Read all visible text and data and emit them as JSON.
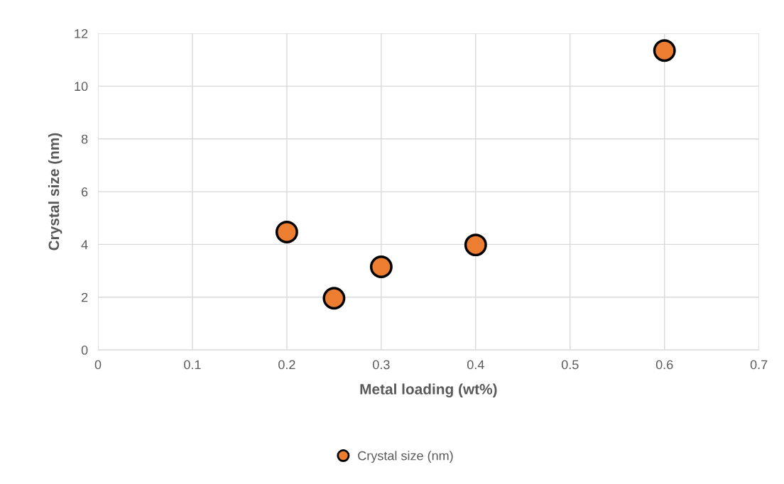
{
  "chart_data": {
    "type": "scatter",
    "xlabel": "Metal loading (wt%)",
    "ylabel": "Crystal size (nm)",
    "x": [
      0.2,
      0.25,
      0.3,
      0.4,
      0.6
    ],
    "series": [
      {
        "name": "Crystal size (nm)",
        "color": "#ed7d31",
        "values": [
          4.47,
          1.96,
          3.15,
          3.98,
          11.35
        ]
      }
    ],
    "xlim": [
      0,
      0.7
    ],
    "xticks": [
      0,
      0.1,
      0.2,
      0.3,
      0.4,
      0.5,
      0.6,
      0.7
    ],
    "ylim": [
      0,
      12
    ],
    "yticks": [
      0,
      2,
      4,
      6,
      8,
      10,
      12
    ],
    "grid": true,
    "legend": "bottom",
    "marker": "circle"
  }
}
